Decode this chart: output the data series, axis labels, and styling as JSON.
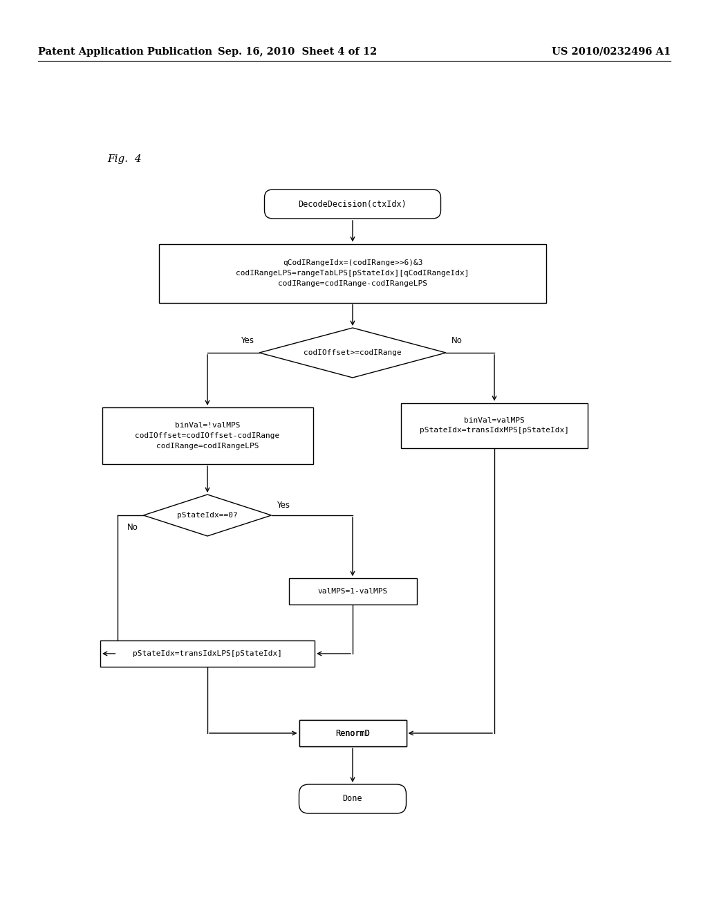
{
  "header_left": "Patent Application Publication",
  "header_mid": "Sep. 16, 2010  Sheet 4 of 12",
  "header_right": "US 2010/0232496 A1",
  "fig_label": "Fig.  4",
  "node_start": "DecodeDecision(ctxIdx)",
  "node_rect1_lines": [
    "qCodIRangeIdx=(codIRange>>6)&3",
    "codIRangeLPS=rangeTabLPS[pStateIdx][qCodIRangeIdx]",
    "codIRange=codIRange-codIRangeLPS"
  ],
  "node_diamond1_text": "codIOffset>=codIRange",
  "node_left_box_lines": [
    "binVal=!valMPS",
    "codIOffset=codIOffset-codIRange",
    "codIRange=codIRangeLPS"
  ],
  "node_right_box_lines": [
    "binVal=valMPS",
    "pStateIdx=transIdxMPS[pStateIdx]"
  ],
  "node_diamond2_text": "pStateIdx==0?",
  "node_valMPS": "valMPS=1-valMPS",
  "node_transLPS": "pStateIdx=transIdxLPS[pStateIdx]",
  "node_renormD": "RenormD",
  "node_done": "Done",
  "label_yes_d1": "Yes",
  "label_no_d1": "No",
  "label_yes_d2": "Yes",
  "label_no_d2": "No",
  "bg_color": "#ffffff",
  "box_color": "#000000",
  "text_color": "#000000",
  "font_size_header": 10.5,
  "font_size_fig": 11,
  "font_size_node": 8.5
}
